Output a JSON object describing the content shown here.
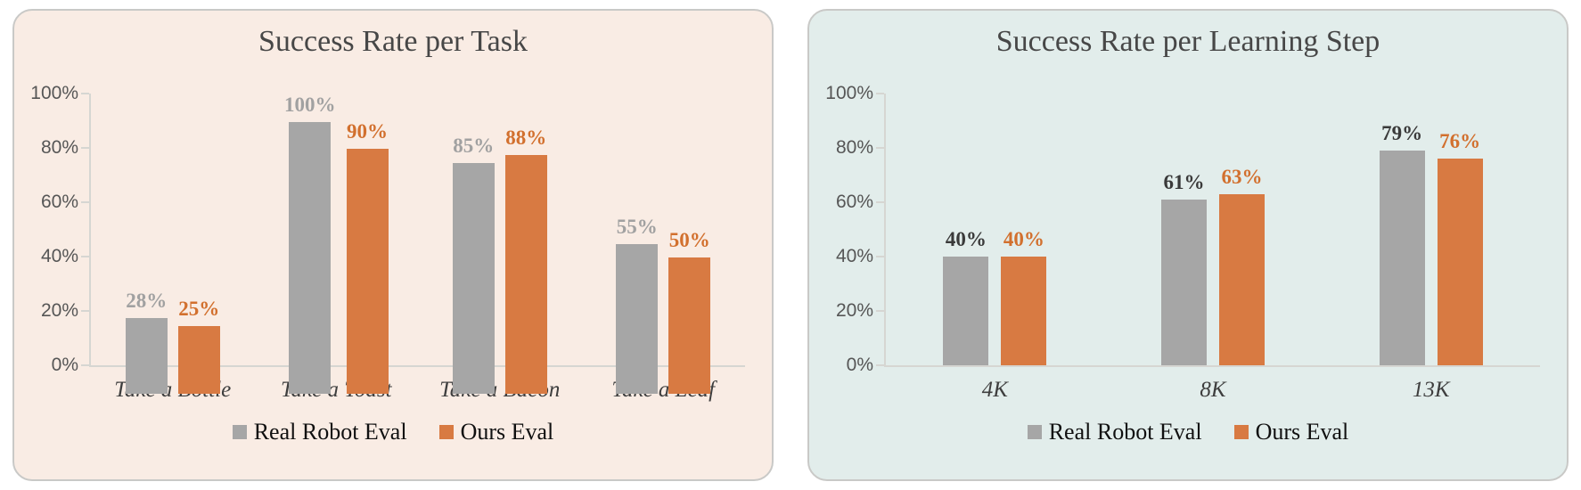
{
  "chart_data": [
    {
      "type": "bar",
      "title": "Success Rate per Task",
      "panel_background": "#F9ECE4",
      "categories": [
        "Take a Bottle",
        "Take a Toast",
        "Take a Bacon",
        "Take a Leaf"
      ],
      "series": [
        {
          "name": "Real Robot Eval",
          "color": "#A6A6A6",
          "label_color": "#A1A1A1",
          "values": [
            28,
            100,
            85,
            55
          ],
          "labels": [
            "28%",
            "100%",
            "85%",
            "55%"
          ]
        },
        {
          "name": "Ours Eval",
          "color": "#D87A42",
          "label_color": "#D2702E",
          "values": [
            25,
            90,
            88,
            50
          ],
          "labels": [
            "25%",
            "90%",
            "88%",
            "50%"
          ]
        }
      ],
      "xlabel": "",
      "ylabel": "",
      "ylim": [
        0,
        100
      ],
      "y_ticks": [
        0,
        20,
        40,
        60,
        80,
        100
      ],
      "y_tick_labels": [
        "0%",
        "20%",
        "40%",
        "60%",
        "80%",
        "100%"
      ],
      "grid": false,
      "data_labels": true,
      "legend_position": "bottom"
    },
    {
      "type": "bar",
      "title": "Success Rate per Learning Step",
      "panel_background": "#E2EDEB",
      "categories": [
        "4K",
        "8K",
        "13K"
      ],
      "series": [
        {
          "name": "Real Robot Eval",
          "color": "#A6A6A6",
          "label_color": "#3A3A3A",
          "values": [
            40,
            61,
            79
          ],
          "labels": [
            "40%",
            "61%",
            "79%"
          ]
        },
        {
          "name": "Ours Eval",
          "color": "#D87A42",
          "label_color": "#D2702E",
          "values": [
            40,
            63,
            76
          ],
          "labels": [
            "40%",
            "63%",
            "76%"
          ]
        }
      ],
      "xlabel": "",
      "ylabel": "",
      "ylim": [
        0,
        100
      ],
      "y_ticks": [
        0,
        20,
        40,
        60,
        80,
        100
      ],
      "y_tick_labels": [
        "0%",
        "20%",
        "40%",
        "60%",
        "80%",
        "100%"
      ],
      "grid": false,
      "data_labels": true,
      "legend_position": "bottom"
    }
  ]
}
